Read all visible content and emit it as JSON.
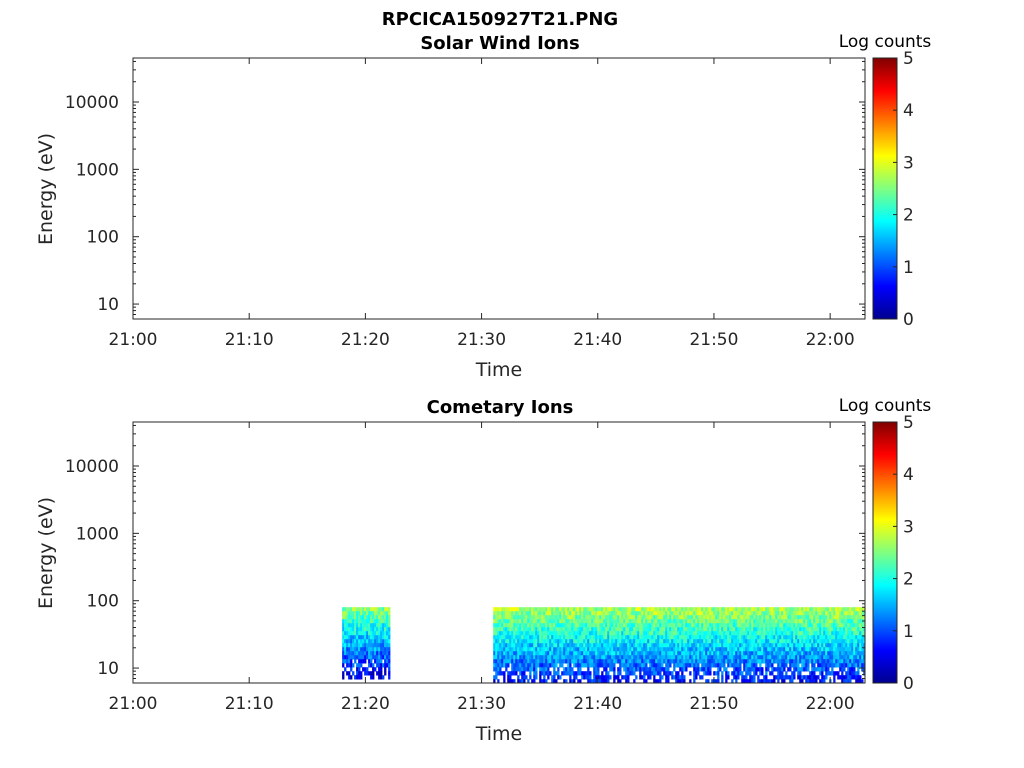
{
  "figure_title": "RPCICA150927T21.PNG",
  "chart_data": [
    {
      "type": "heatmap",
      "title": "Solar Wind Ions",
      "xlabel": "Time",
      "ylabel": "Energy (eV)",
      "x_ticks": [
        "21:00",
        "21:10",
        "21:20",
        "21:30",
        "21:40",
        "21:50",
        "22:00"
      ],
      "xlim": [
        "21:00",
        "22:03"
      ],
      "y_scale": "log",
      "y_ticks": [
        10,
        100,
        1000,
        10000
      ],
      "y_tick_labels": [
        "10",
        "100",
        "1000",
        "10000"
      ],
      "ylim": [
        6,
        45000
      ],
      "colorbar": {
        "label": "Log counts",
        "range": [
          0,
          5
        ],
        "ticks": [
          "0",
          "1",
          "2",
          "3",
          "4",
          "5"
        ]
      },
      "intervals": []
    },
    {
      "type": "heatmap",
      "title": "Cometary Ions",
      "xlabel": "Time",
      "ylabel": "Energy (eV)",
      "x_ticks": [
        "21:00",
        "21:10",
        "21:20",
        "21:30",
        "21:40",
        "21:50",
        "22:00"
      ],
      "xlim": [
        "21:00",
        "22:03"
      ],
      "y_scale": "log",
      "y_ticks": [
        10,
        100,
        1000,
        10000
      ],
      "y_tick_labels": [
        "10",
        "100",
        "1000",
        "10000"
      ],
      "ylim": [
        6,
        45000
      ],
      "colorbar": {
        "label": "Log counts",
        "range": [
          0,
          5
        ],
        "ticks": [
          "0",
          "1",
          "2",
          "3",
          "4",
          "5"
        ]
      },
      "intervals": [
        {
          "start": "21:18",
          "end": "21:22",
          "energy_range_eV": [
            7,
            80
          ],
          "log_counts_top": 2.5,
          "log_counts_bottom": 0.4
        },
        {
          "start": "21:31",
          "end": "22:03",
          "energy_range_eV": [
            6,
            80
          ],
          "log_counts_top": 2.7,
          "log_counts_bottom": 0.6
        }
      ]
    }
  ]
}
